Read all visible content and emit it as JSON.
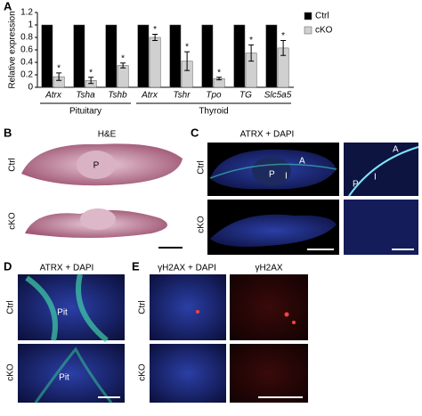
{
  "chart_data": {
    "type": "bar",
    "panel_label": "A",
    "y_label": "Relative expression",
    "categories": [
      "Atrx",
      "Tsha",
      "Tshb",
      "Atrx",
      "Tshr",
      "Tpo",
      "TG",
      "Slc5a5"
    ],
    "groups": [
      {
        "name": "Pituitary",
        "size": 3
      },
      {
        "name": "Thyroid",
        "size": 5
      }
    ],
    "series": [
      {
        "name": "Ctrl",
        "color": "#000000",
        "values": [
          1,
          1,
          1,
          1,
          1,
          1,
          1,
          1
        ]
      },
      {
        "name": "cKO",
        "color": "#d0d0d0",
        "values": [
          0.17,
          0.11,
          0.35,
          0.8,
          0.42,
          0.14,
          0.55,
          0.63
        ],
        "errors": [
          0.06,
          0.05,
          0.04,
          0.05,
          0.15,
          0.02,
          0.13,
          0.12
        ],
        "annotations": [
          "*",
          "*",
          "*",
          "*",
          "*",
          "*",
          "*",
          "*"
        ]
      }
    ],
    "ylim": [
      0,
      1.2
    ],
    "yticks": [
      0,
      0.2,
      0.4,
      0.6,
      0.8,
      1,
      1.2
    ],
    "legend": "top-right"
  },
  "panel_b": {
    "label": "B",
    "title": "H&E",
    "rows": [
      "Ctrl",
      "cKO"
    ],
    "markers": [
      "P"
    ]
  },
  "panel_c": {
    "label": "C",
    "title": "ATRX + DAPI",
    "rows": [
      "Ctrl",
      "cKO"
    ],
    "markers": [
      "A",
      "P",
      "I"
    ],
    "inset_markers": [
      "A",
      "P",
      "I"
    ]
  },
  "panel_d": {
    "label": "D",
    "title": "ATRX + DAPI",
    "rows": [
      "Ctrl",
      "cKO"
    ],
    "markers": [
      "Pit",
      "Pit"
    ]
  },
  "panel_e": {
    "label": "E",
    "titles": [
      "γH2AX + DAPI",
      "γH2AX"
    ],
    "rows": [
      "Ctrl",
      "cKO"
    ]
  }
}
